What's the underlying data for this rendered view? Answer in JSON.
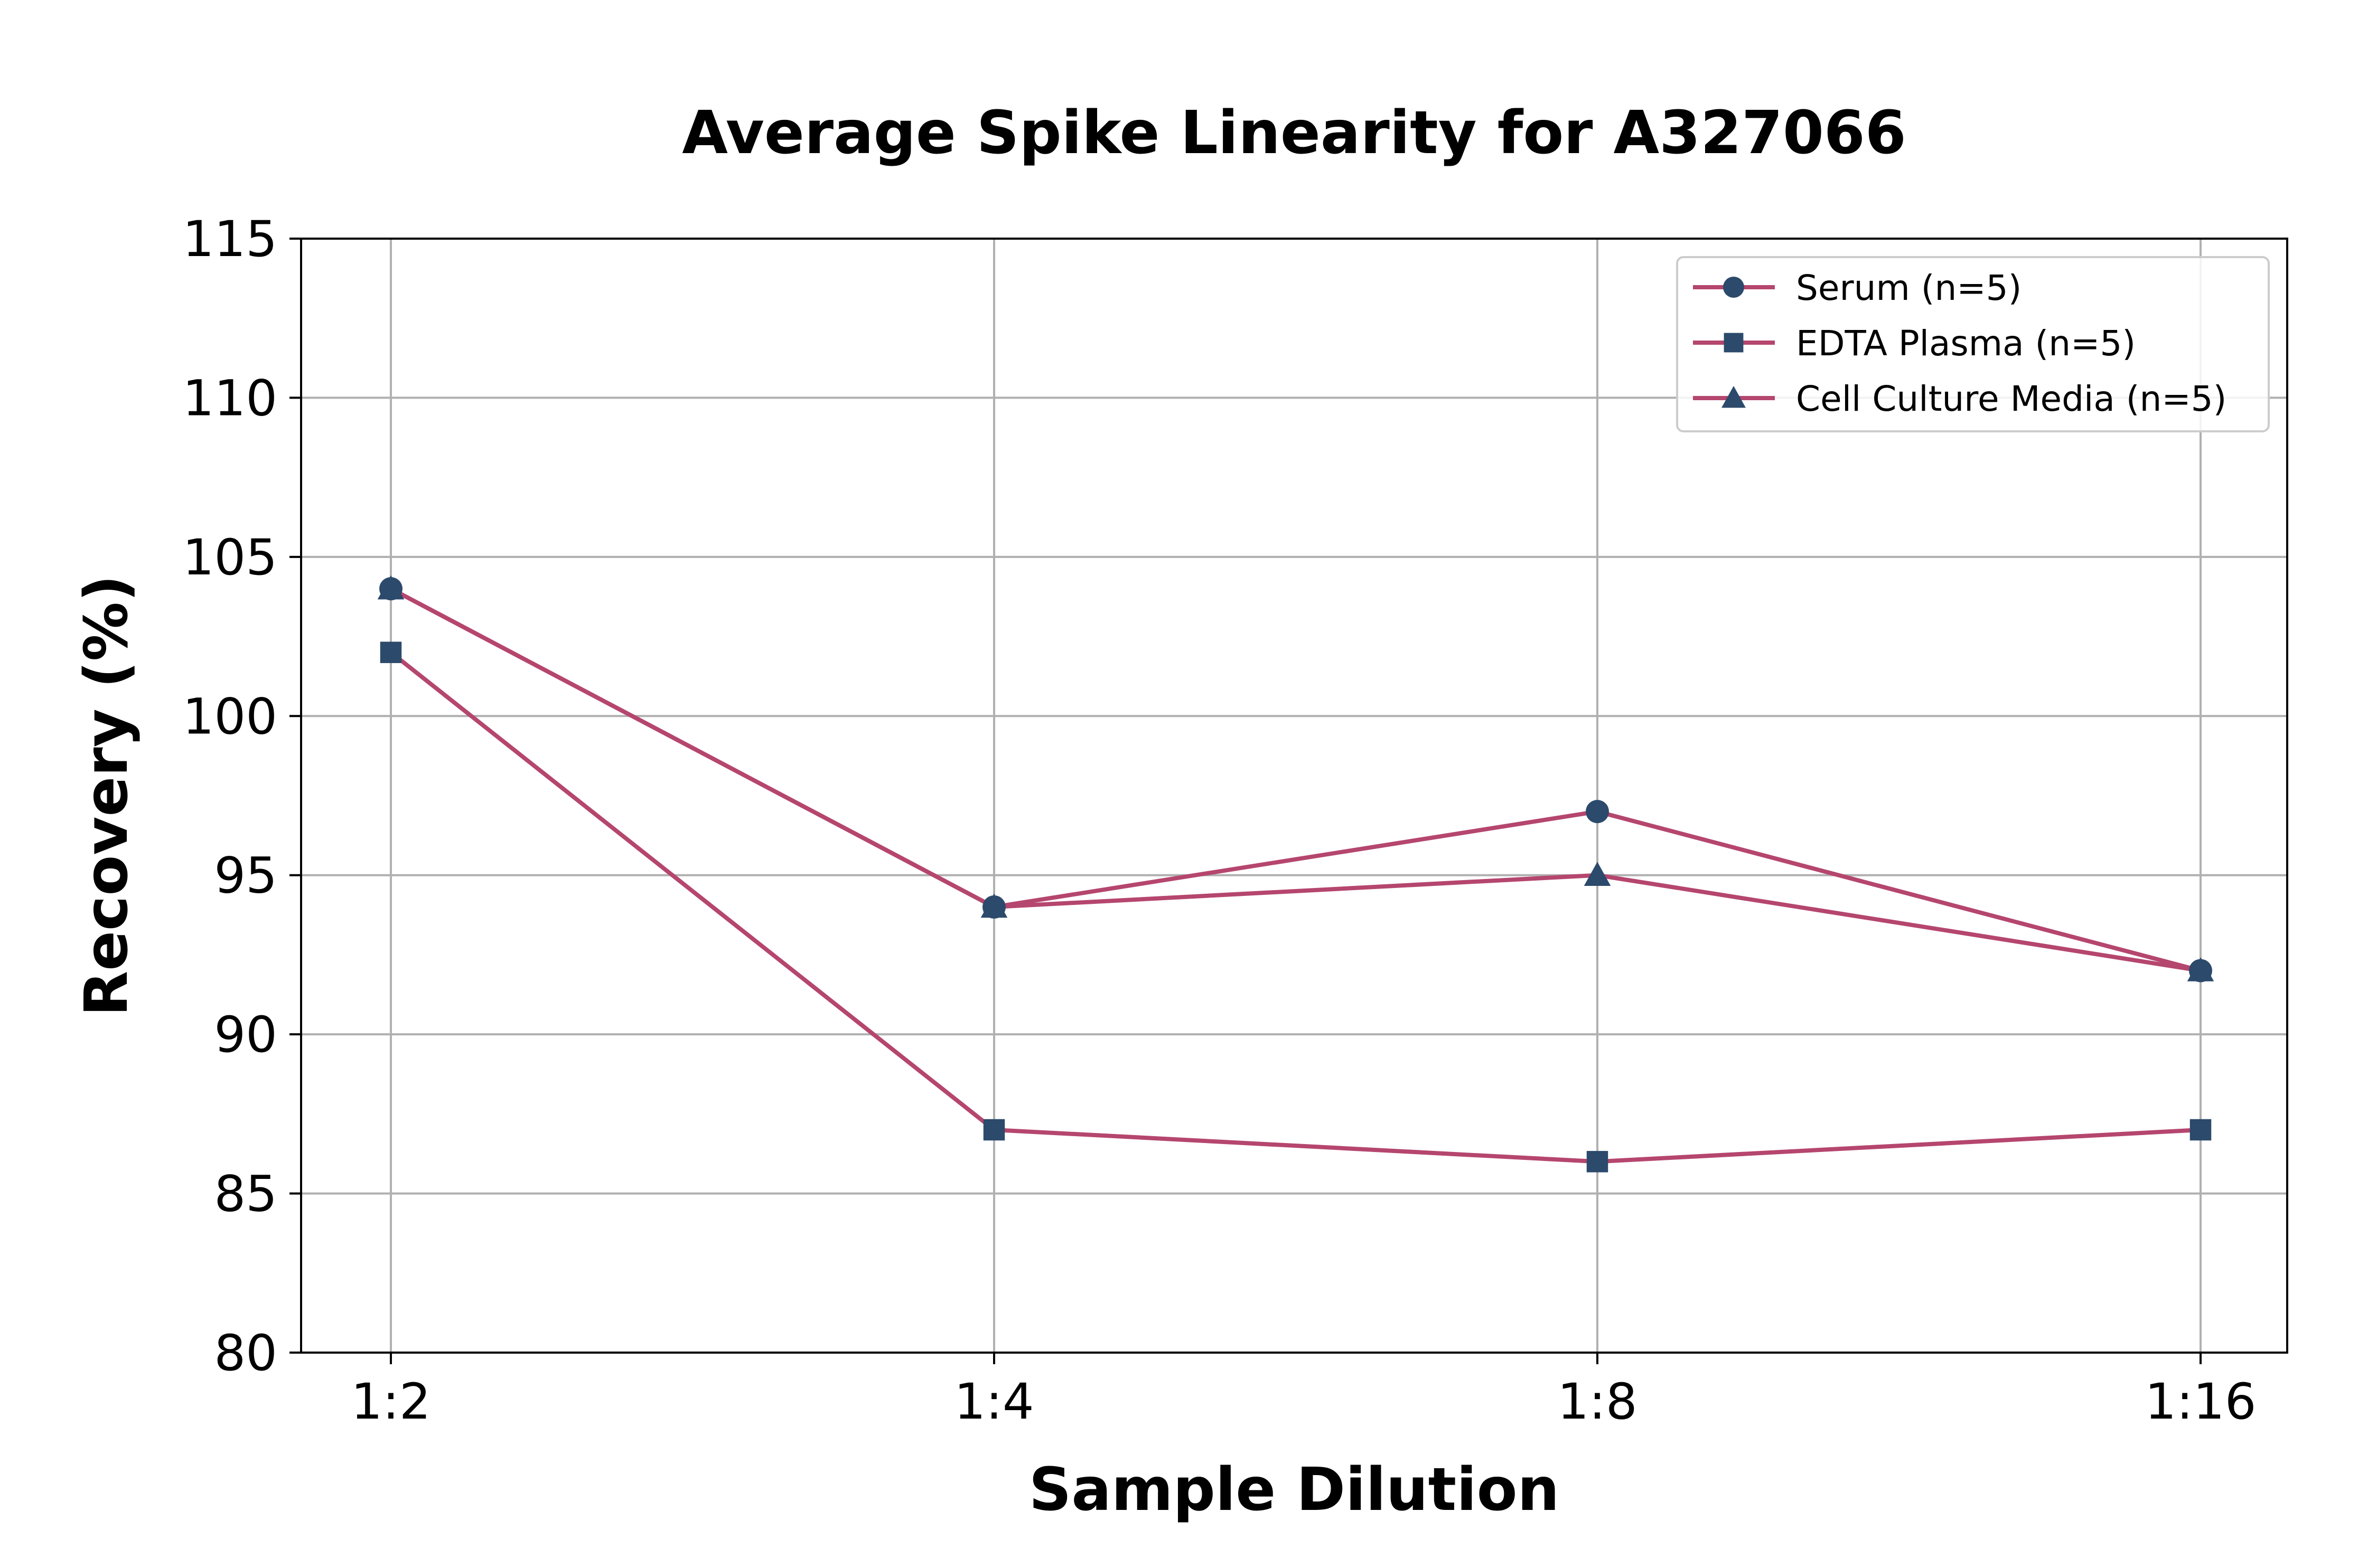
{
  "chart_data": {
    "type": "line",
    "title": "Average Spike Linearity for A327066",
    "xlabel": "Sample Dilution",
    "ylabel": "Recovery (%)",
    "categories": [
      "1:2",
      "1:4",
      "1:8",
      "1:16"
    ],
    "ylim": [
      80,
      115
    ],
    "yticks": [
      80,
      85,
      90,
      95,
      100,
      105,
      110,
      115
    ],
    "grid": true,
    "legend_position": "top-right",
    "line_color": "#b5466e",
    "marker_color": "#2c4a6b",
    "series": [
      {
        "name": "Serum (n=5)",
        "marker": "circle",
        "values": [
          104,
          94,
          97,
          92
        ]
      },
      {
        "name": "EDTA Plasma (n=5)",
        "marker": "square",
        "values": [
          102,
          87,
          86,
          87
        ]
      },
      {
        "name": "Cell Culture Media (n=5)",
        "marker": "triangle",
        "values": [
          104,
          94,
          95,
          92
        ]
      }
    ]
  }
}
